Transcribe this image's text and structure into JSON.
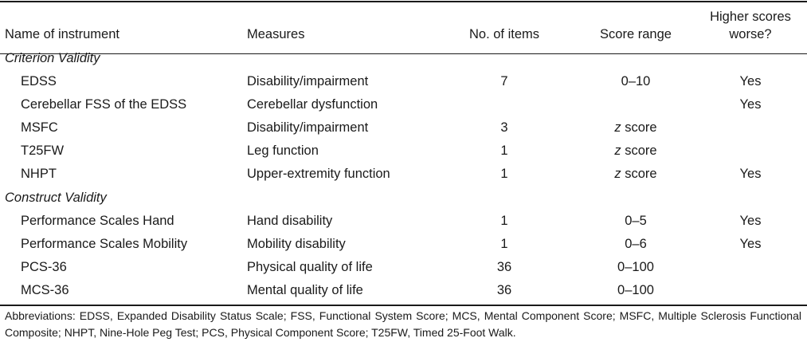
{
  "headers": {
    "name": "Name of instrument",
    "measures": "Measures",
    "items": "No. of items",
    "range": "Score range",
    "worse_line1": "Higher scores",
    "worse_line2": "worse?"
  },
  "sections": [
    {
      "title": "Criterion Validity",
      "rows": [
        {
          "name": "EDSS",
          "measures": "Disability/impairment",
          "items": "7",
          "range": "0–10",
          "range_z": false,
          "worse": "Yes"
        },
        {
          "name": "Cerebellar FSS of the EDSS",
          "measures": "Cerebellar dysfunction",
          "items": "",
          "range": "",
          "range_z": false,
          "worse": "Yes"
        },
        {
          "name": "MSFC",
          "measures": "Disability/impairment",
          "items": "3",
          "range": "score",
          "range_z": true,
          "worse": ""
        },
        {
          "name": "T25FW",
          "measures": "Leg function",
          "items": "1",
          "range": "score",
          "range_z": true,
          "worse": ""
        },
        {
          "name": "NHPT",
          "measures": "Upper-extremity function",
          "items": "1",
          "range": "score",
          "range_z": true,
          "worse": "Yes"
        }
      ]
    },
    {
      "title": "Construct Validity",
      "rows": [
        {
          "name": "Performance Scales Hand",
          "measures": "Hand disability",
          "items": "1",
          "range": "0–5",
          "range_z": false,
          "worse": "Yes"
        },
        {
          "name": "Performance Scales Mobility",
          "measures": "Mobility disability",
          "items": "1",
          "range": "0–6",
          "range_z": false,
          "worse": "Yes"
        },
        {
          "name": "PCS-36",
          "measures": "Physical quality of life",
          "items": "36",
          "range": "0–100",
          "range_z": false,
          "worse": ""
        },
        {
          "name": "MCS-36",
          "measures": "Mental quality of life",
          "items": "36",
          "range": "0–100",
          "range_z": false,
          "worse": ""
        }
      ]
    }
  ],
  "z_prefix": "z",
  "abbreviations": "Abbreviations: EDSS, Expanded Disability Status Scale; FSS, Functional System Score; MCS, Mental Component Score; MSFC, Multiple Sclerosis Functional Composite; NHPT, Nine-Hole Peg Test; PCS, Physical Component Score; T25FW, Timed 25-Foot Walk."
}
